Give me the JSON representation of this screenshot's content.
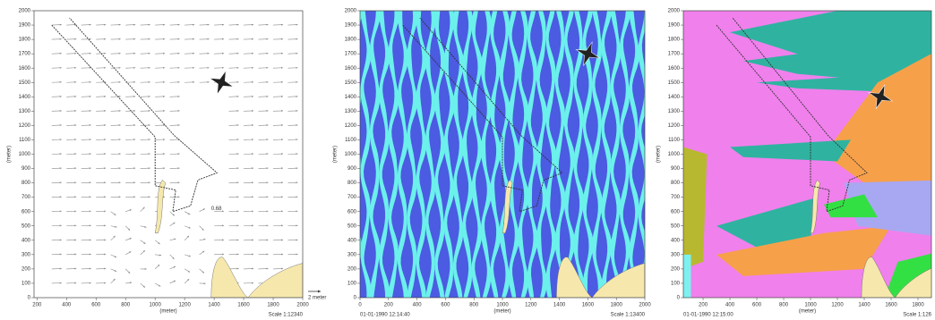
{
  "chart_data": [
    {
      "type": "vector",
      "xlabel": "(meter)",
      "ylabel": "(meter)",
      "xlim": [
        180,
        2000
      ],
      "ylim": [
        0,
        2000
      ],
      "xticks": [
        200,
        400,
        600,
        800,
        1000,
        1200,
        1400,
        1600,
        1800,
        2000
      ],
      "yticks": [
        0,
        100,
        200,
        300,
        400,
        500,
        600,
        700,
        800,
        900,
        1000,
        1100,
        1200,
        1300,
        1400,
        1500,
        1600,
        1700,
        1800,
        1900,
        2000
      ],
      "annotation": "0.68",
      "legend_label": "2 meter",
      "scale": "Scale 1:12340",
      "color": "#8a8a8a"
    },
    {
      "type": "contour",
      "xlabel": "(meter)",
      "ylabel": "(meter)",
      "xlim": [
        0,
        2000
      ],
      "ylim": [
        0,
        2000
      ],
      "xticks": [
        0,
        200,
        400,
        600,
        800,
        1000,
        1200,
        1400,
        1600,
        1800,
        2000
      ],
      "yticks": [
        0,
        100,
        200,
        300,
        400,
        500,
        600,
        700,
        800,
        900,
        1000,
        1100,
        1200,
        1300,
        1400,
        1500,
        1600,
        1700,
        1800,
        1900,
        2000
      ],
      "colors": [
        "#4b5be2",
        "#6cf0ec"
      ],
      "date": "01-01-1990 12:14:40",
      "scale": "Scale 1:13400"
    },
    {
      "type": "contour",
      "xlabel": "(meter)",
      "ylabel": "(meter)",
      "xlim": [
        53,
        1900
      ],
      "ylim": [
        0,
        2000
      ],
      "xticks": [
        200,
        400,
        600,
        800,
        1000,
        1200,
        1400,
        1600,
        1800
      ],
      "yticks": [
        0,
        100,
        200,
        300,
        400,
        500,
        600,
        700,
        800,
        900,
        1000,
        1100,
        1200,
        1300,
        1400,
        1500,
        1600,
        1700,
        1800,
        1900,
        2000
      ],
      "colors": [
        "#f080ec",
        "#2fb3a0",
        "#f7a04a",
        "#a8a8f2",
        "#33e044",
        "#b8b830",
        "#7ef0f0"
      ],
      "date": "01-01-1990 12:15:00",
      "scale": "Scale 1:126"
    }
  ]
}
